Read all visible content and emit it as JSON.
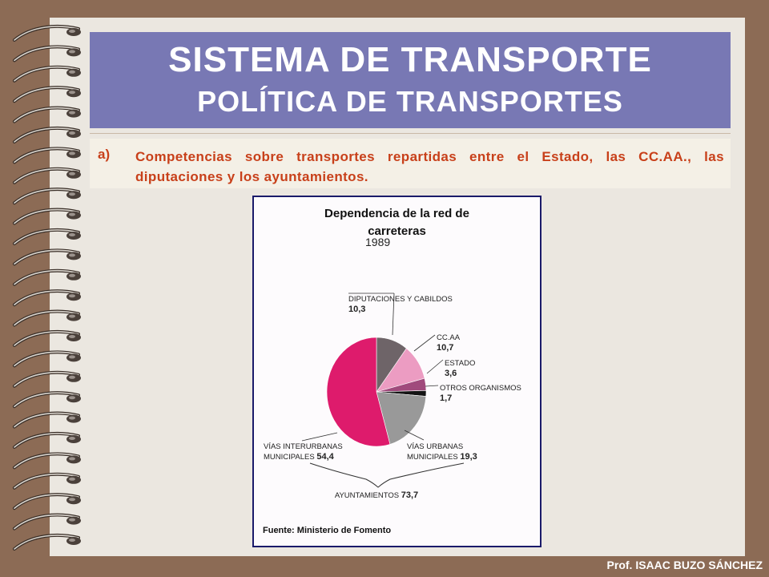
{
  "slide": {
    "title_line1": "SISTEMA DE TRANSPORTE",
    "title_line2": "POLÍTICA DE TRANSPORTES",
    "point_marker": "a)",
    "point_text": "Competencias sobre transportes repartidas entre el Estado, las CC.AA., las diputaciones y los ayuntamientos.",
    "footer": "Prof. ISAAC BUZO SÁNCHEZ"
  },
  "figure": {
    "title_line1": "Dependencia de la red de",
    "title_line2": "carreteras",
    "source": "Fuente: Ministerio de Fomento"
  },
  "chart_data": {
    "type": "pie",
    "year_label": "1989",
    "slices": [
      {
        "name": "DIPUTACIONES Y CABILDOS",
        "value": 10.3,
        "value_label": "10,3",
        "color": "#6e6468"
      },
      {
        "name": "CC.AA",
        "value": 10.7,
        "value_label": "10,7",
        "color": "#ec9cc2"
      },
      {
        "name": "ESTADO",
        "value": 3.6,
        "value_label": "3,6",
        "color": "#a04a7c"
      },
      {
        "name": "OTROS ORGANISMOS",
        "value": 1.7,
        "value_label": "1,7",
        "color": "#141414"
      },
      {
        "name": "VÍAS URBANAS MUNICIPALES",
        "value": 19.3,
        "value_label": "19,3",
        "color": "#999999"
      },
      {
        "name": "VÍAS INTERURBANAS MUNICIPALES",
        "value": 54.4,
        "value_label": "54,4",
        "color": "#de1b6c"
      }
    ],
    "group": {
      "name": "AYUNTAMIENTOS",
      "value_label": "73,7"
    }
  }
}
